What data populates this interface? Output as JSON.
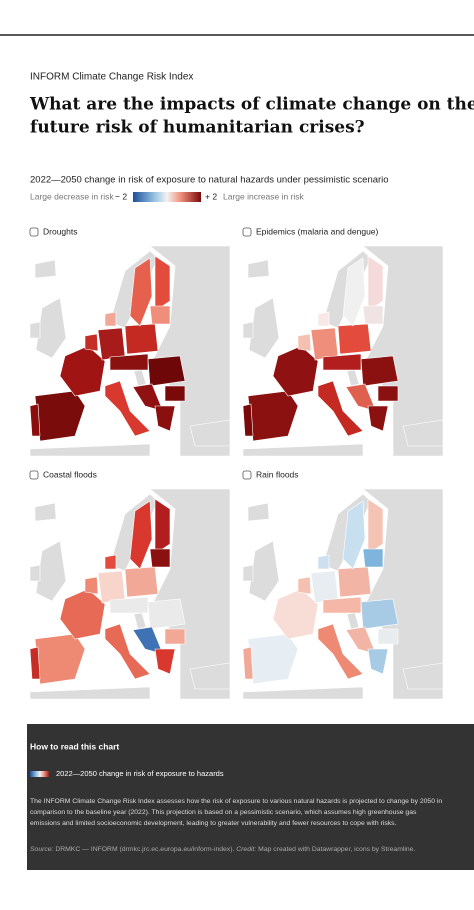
{
  "header": {
    "kicker": "INFORM Climate Change Risk Index",
    "title_lines": [
      "What are the impacts of climate change on the",
      "future risk of humanitarian crises?"
    ]
  },
  "subtitle": "2022—2050 change in risk of exposure to natural hazards under pessimistic scenario",
  "legend": {
    "low_text": "Large decrease in risk",
    "min_label": "− 2",
    "max_label": "+ 2",
    "high_text": "Large increase in risk"
  },
  "maps": [
    {
      "title": "Droughts"
    },
    {
      "title": "Epidemics (malaria and dengue)"
    },
    {
      "title": "Coastal floods"
    },
    {
      "title": "Rain floods"
    }
  ],
  "footer": {
    "heading": "How to read this chart",
    "legend_text": "2022—2050 change in risk of exposure to hazards",
    "body_lines": [
      "The INFORM Climate Change Risk Index assesses how the risk of exposure to various natural hazards is projected to change by 2050 in",
      "comparison to the baseline year (2022). This projection is based on a pessimistic scenario, which assumes high greenhouse gas",
      "emissions and limited socioeconomic development, leading to greater vulnerability and fewer resources to cope with risks."
    ],
    "source_label": "Source:",
    "source": "DRMKC — INFORM (drmkc.jrc.ec.europa.eu/inform-index).",
    "credit_label": "Credit:",
    "credit": "Map created with Datawrapper, icons by Streamline."
  }
}
